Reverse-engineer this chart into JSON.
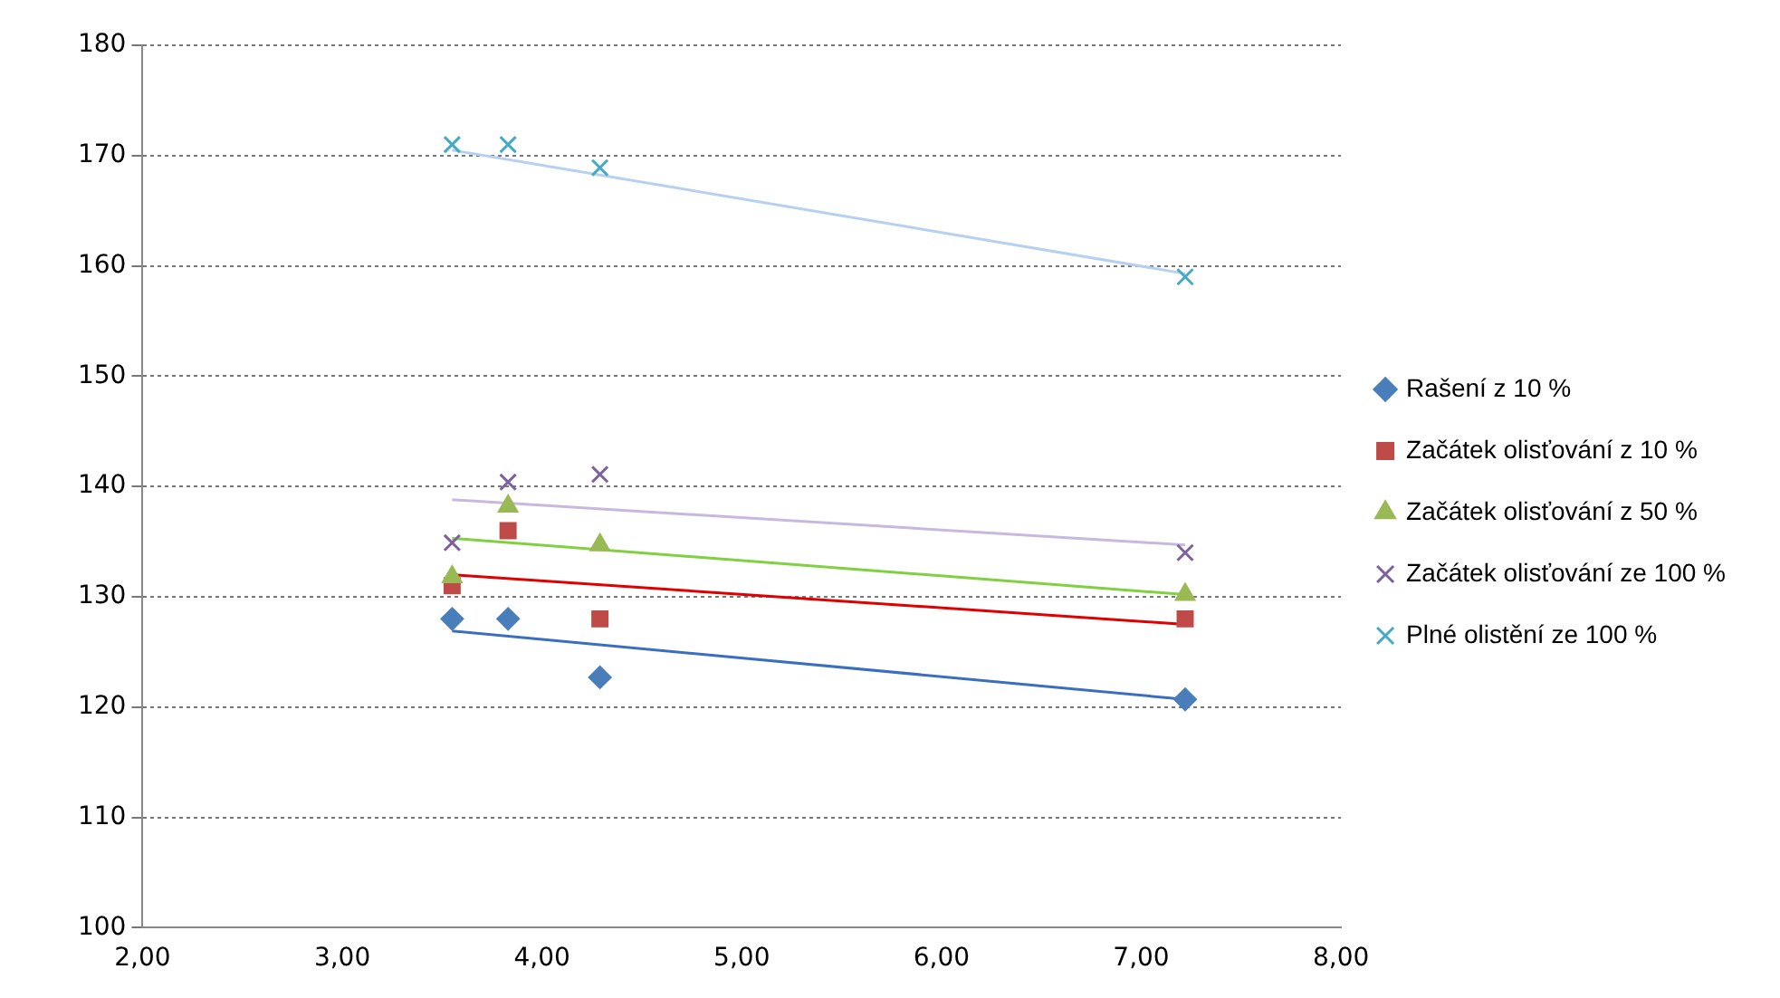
{
  "chart_data": {
    "type": "scatter",
    "xlim": [
      2,
      8
    ],
    "xticks": [
      {
        "value": 2,
        "label": "2,00"
      },
      {
        "value": 3,
        "label": "3,00"
      },
      {
        "value": 4,
        "label": "4,00"
      },
      {
        "value": 5,
        "label": "5,00"
      },
      {
        "value": 6,
        "label": "6,00"
      },
      {
        "value": 7,
        "label": "7,00"
      },
      {
        "value": 8,
        "label": "8,00"
      }
    ],
    "ylim": [
      100,
      180
    ],
    "yticks": [
      100,
      110,
      120,
      130,
      140,
      150,
      160,
      170,
      180
    ],
    "grid": "y",
    "legend": "right",
    "series": [
      {
        "name": "Rašení z 10 %",
        "color": "#4a7ebb",
        "marker": "diamond",
        "x": [
          3.55,
          3.83,
          4.29,
          7.22
        ],
        "values": [
          128,
          128,
          122.7,
          120.7
        ]
      },
      {
        "name": "Začátek olisťování z 10 %",
        "color": "#be4b48",
        "marker": "square",
        "x": [
          3.55,
          3.83,
          4.29,
          7.22
        ],
        "values": [
          131,
          136,
          128,
          128
        ]
      },
      {
        "name": "Začátek olisťování z 50 %",
        "color": "#98b954",
        "marker": "triangle",
        "x": [
          3.55,
          3.83,
          4.29,
          7.22
        ],
        "values": [
          131.8,
          138.2,
          134.7,
          130.2
        ]
      },
      {
        "name": "Začátek olisťování ze 100 %",
        "color": "#7d60a0",
        "marker": "cross",
        "x": [
          3.55,
          3.83,
          4.29,
          7.22
        ],
        "values": [
          134.9,
          140.4,
          141.1,
          134
        ]
      },
      {
        "name": "Plné olistění ze 100 %",
        "color": "#46aac5",
        "marker": "cross",
        "x": [
          3.55,
          3.83,
          4.29,
          7.22
        ],
        "values": [
          171,
          171,
          168.9,
          159
        ]
      },
      {
        "type": "line",
        "color": "#3a6fc0",
        "marker": "none",
        "x": [
          3.55,
          7.22
        ],
        "values": [
          126.9,
          120.7
        ]
      },
      {
        "type": "line",
        "color": "#e00000",
        "marker": "none",
        "x": [
          3.55,
          7.22
        ],
        "values": [
          132,
          127.5
        ]
      },
      {
        "type": "line",
        "color": "#80d040",
        "marker": "none",
        "x": [
          3.55,
          7.22
        ],
        "values": [
          135.3,
          130.2
        ]
      },
      {
        "type": "line",
        "color": "#c8b8e0",
        "marker": "none",
        "x": [
          3.55,
          7.22
        ],
        "values": [
          138.8,
          134.7
        ]
      },
      {
        "type": "line",
        "color": "#b8d0f0",
        "marker": "none",
        "x": [
          3.55,
          7.22
        ],
        "values": [
          170.5,
          159.3
        ]
      }
    ]
  }
}
